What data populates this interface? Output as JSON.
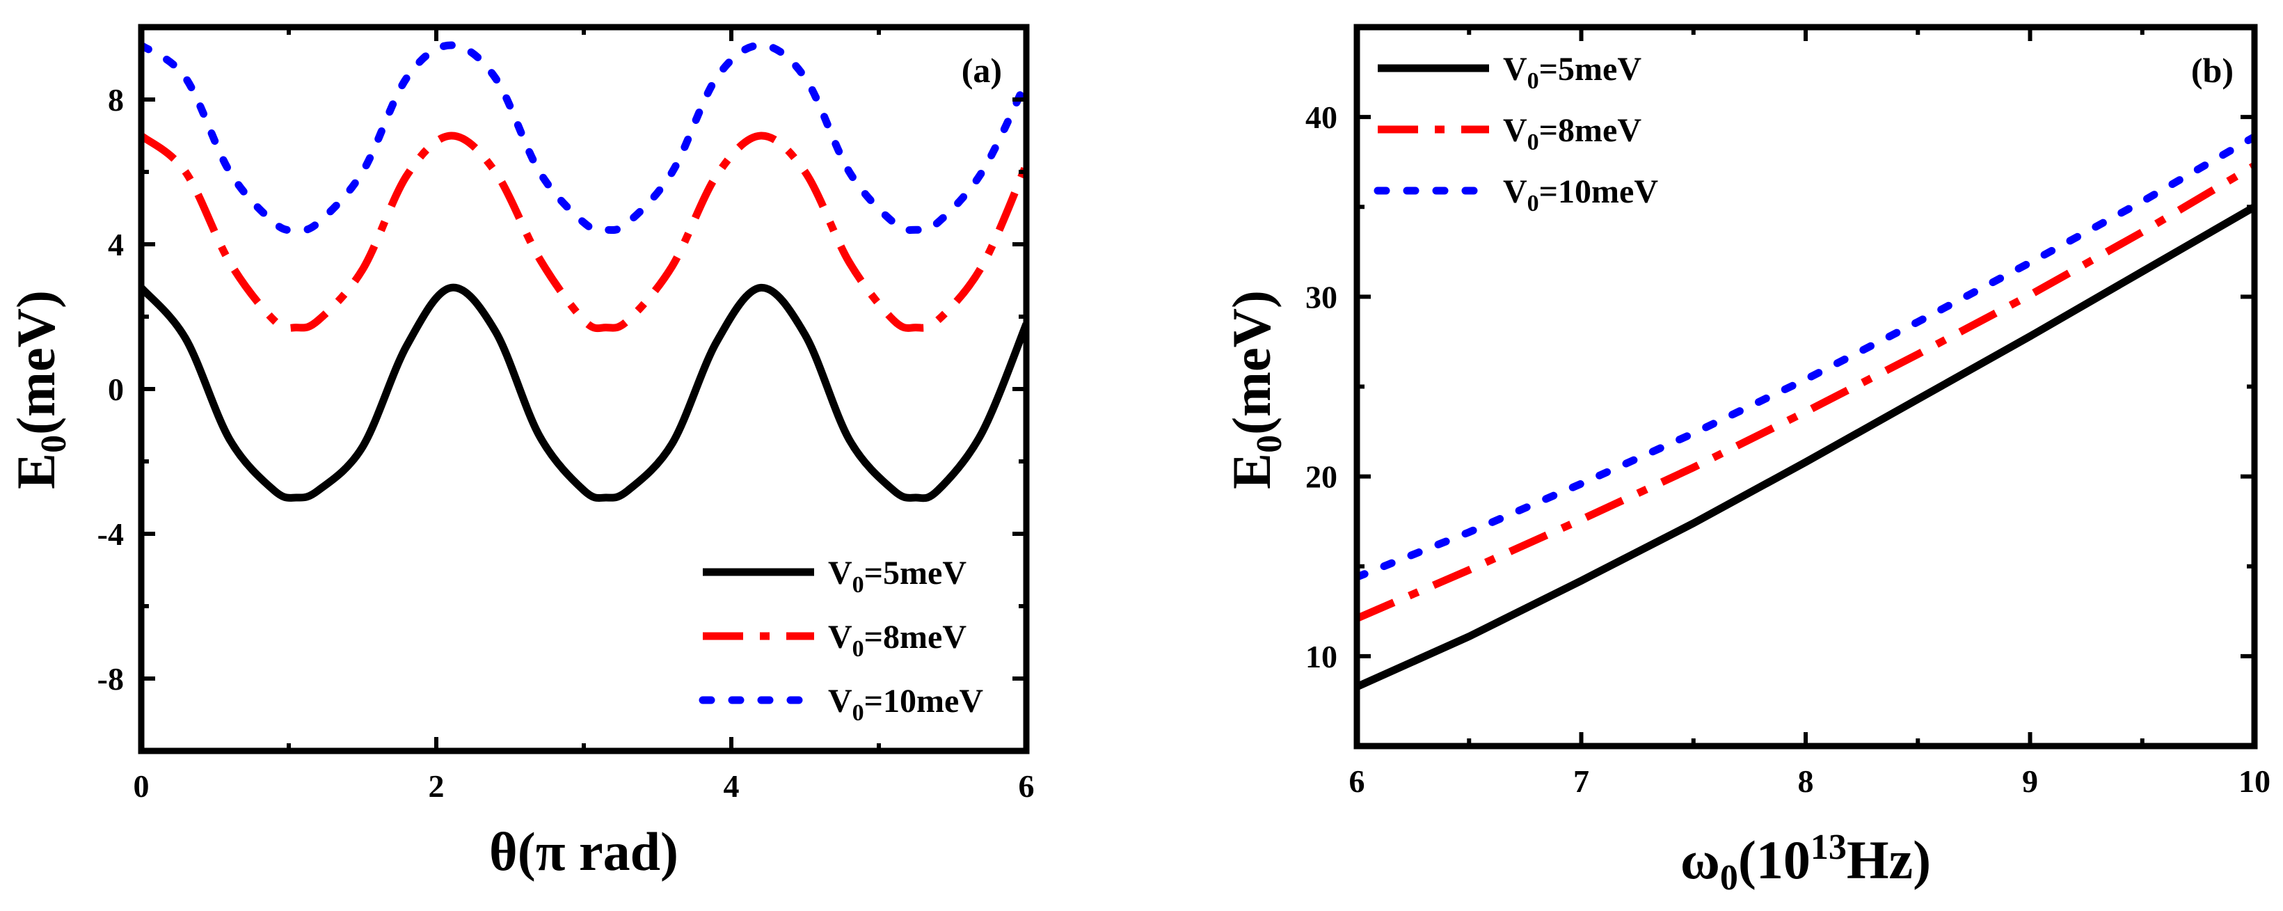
{
  "chart_data": [
    {
      "type": "line",
      "panel_label": "(a)",
      "xlabel": "θ(π rad)",
      "ylabel": "E0(meV)",
      "xlim": [
        0,
        6
      ],
      "ylim": [
        -10,
        10
      ],
      "xticks": [
        0,
        2,
        4,
        6
      ],
      "yticks": [
        -8,
        -4,
        0,
        4,
        8
      ],
      "xtick_labels": [
        "0",
        "2",
        "4",
        "6"
      ],
      "ytick_labels": [
        "-8",
        "-4",
        "0",
        "4",
        "8"
      ],
      "legend_position": "bottom-right",
      "x": [
        0.0,
        0.3,
        0.6,
        0.9,
        1.05,
        1.2,
        1.5,
        1.8,
        2.1,
        2.4,
        2.7,
        3.0,
        3.15,
        3.3,
        3.6,
        3.9,
        4.2,
        4.5,
        4.8,
        5.1,
        5.25,
        5.4,
        5.7,
        6.0
      ],
      "series": [
        {
          "name": "V0=5meV",
          "legend_main": "V",
          "legend_sub": "0",
          "legend_rest": "=5meV",
          "color": "#000000",
          "dash": "solid",
          "values": [
            2.8,
            1.4,
            -1.4,
            -2.8,
            -3.0,
            -2.8,
            -1.6,
            1.2,
            2.8,
            1.6,
            -1.3,
            -2.8,
            -3.0,
            -2.8,
            -1.5,
            1.3,
            2.8,
            1.5,
            -1.4,
            -2.8,
            -3.0,
            -2.8,
            -1.2,
            1.8
          ]
        },
        {
          "name": "V0=8meV",
          "legend_main": "V",
          "legend_sub": "0",
          "legend_rest": "=8meV",
          "color": "#ff0000",
          "dash": "dashdot",
          "values": [
            7.0,
            6.0,
            3.5,
            1.9,
            1.7,
            1.9,
            3.3,
            5.9,
            7.0,
            6.0,
            3.6,
            1.9,
            1.7,
            1.9,
            3.4,
            5.9,
            7.0,
            6.0,
            3.5,
            1.9,
            1.7,
            1.9,
            3.4,
            6.2
          ]
        },
        {
          "name": "V0=10meV",
          "legend_main": "V",
          "legend_sub": "0",
          "legend_rest": "=10meV",
          "color": "#0000ff",
          "dash": "dotted",
          "values": [
            9.5,
            8.6,
            6.0,
            4.6,
            4.4,
            4.6,
            6.0,
            8.6,
            9.5,
            8.6,
            6.0,
            4.6,
            4.4,
            4.6,
            6.0,
            8.6,
            9.5,
            8.6,
            6.0,
            4.6,
            4.4,
            4.6,
            6.0,
            8.5
          ]
        }
      ]
    },
    {
      "type": "line",
      "panel_label": "(b)",
      "xlabel": "ω0(10^13Hz)",
      "ylabel": "E0(meV)",
      "xlim": [
        6,
        10
      ],
      "ylim": [
        5,
        45
      ],
      "xticks": [
        6,
        7,
        8,
        9,
        10
      ],
      "yticks": [
        10,
        20,
        30,
        40
      ],
      "xtick_labels": [
        "6",
        "7",
        "8",
        "9",
        "10"
      ],
      "ytick_labels": [
        "10",
        "20",
        "30",
        "40"
      ],
      "legend_position": "top-left",
      "x": [
        6,
        6.5,
        7,
        7.5,
        8,
        8.5,
        9,
        9.5,
        10
      ],
      "series": [
        {
          "name": "V0=5meV",
          "legend_main": "V",
          "legend_sub": "0",
          "legend_rest": "=5meV",
          "color": "#000000",
          "dash": "solid",
          "values": [
            8.3,
            11.1,
            14.2,
            17.4,
            20.8,
            24.3,
            27.8,
            31.4,
            35.0
          ]
        },
        {
          "name": "V0=8meV",
          "legend_main": "V",
          "legend_sub": "0",
          "legend_rest": "=8meV",
          "color": "#ff0000",
          "dash": "dashdot",
          "values": [
            12.1,
            14.8,
            17.6,
            20.5,
            23.6,
            26.8,
            30.1,
            33.6,
            37.3
          ]
        },
        {
          "name": "V0=10meV",
          "legend_main": "V",
          "legend_sub": "0",
          "legend_rest": "=10meV",
          "color": "#0000ff",
          "dash": "dotted",
          "values": [
            14.4,
            16.9,
            19.6,
            22.4,
            25.4,
            28.6,
            31.9,
            35.3,
            38.9
          ]
        }
      ]
    }
  ],
  "axis_text": {
    "a_ylabel_main": "E",
    "a_ylabel_sub": "0",
    "a_ylabel_rest": "(meV)",
    "a_xlabel": "θ(π rad)",
    "b_ylabel_main": "E",
    "b_ylabel_sub": "0",
    "b_ylabel_rest": "(meV)",
    "b_xlabel_main": "ω",
    "b_xlabel_sub": "0",
    "b_xlabel_mid": "(10",
    "b_xlabel_sup": "13",
    "b_xlabel_rest": "Hz)"
  }
}
